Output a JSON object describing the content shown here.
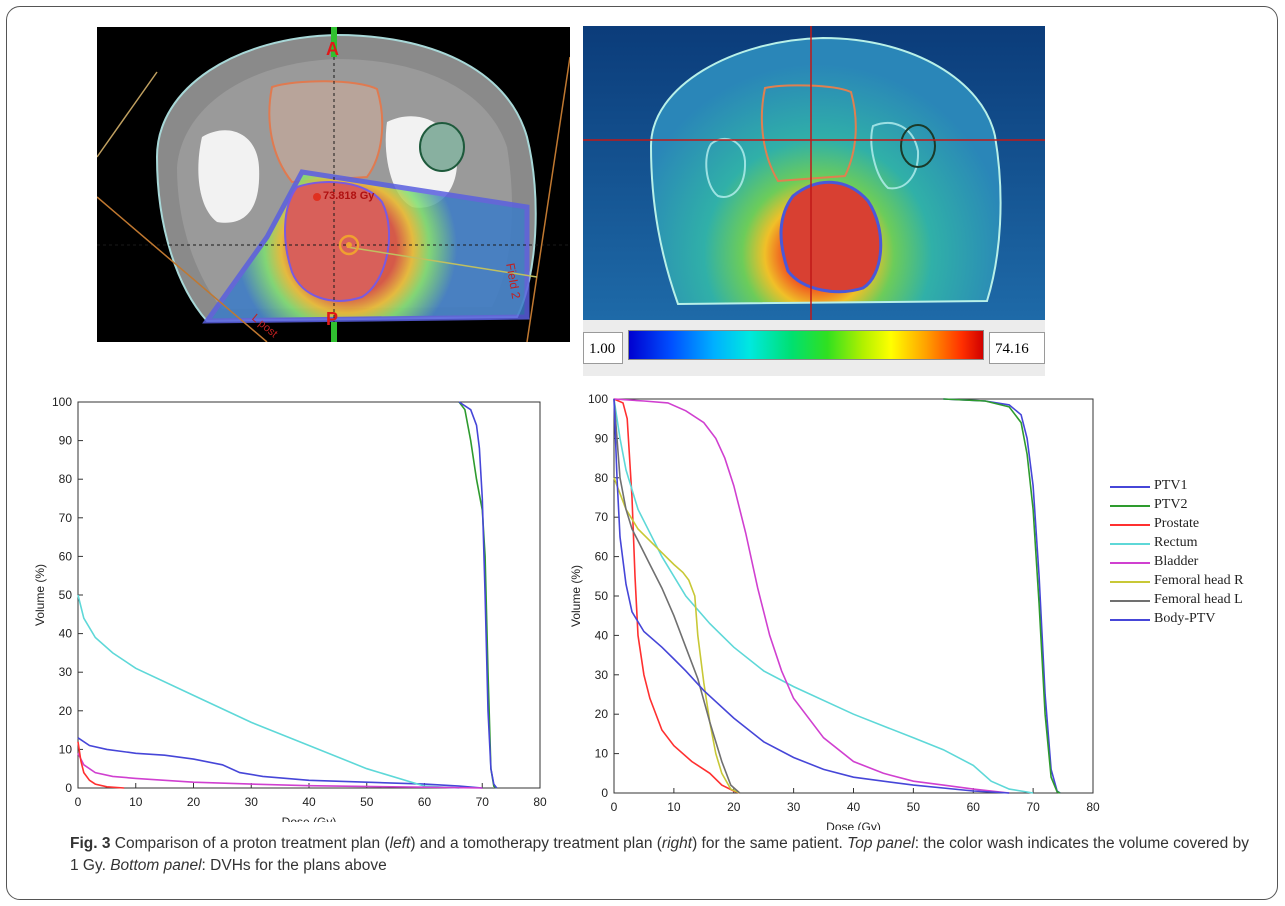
{
  "figure": {
    "caption": {
      "label": "Fig. 3",
      "part1": " Comparison of a proton treatment plan (",
      "left_word": "left",
      "part2": ") and a tomotherapy treatment plan (",
      "right_word": "right",
      "part3": ") for the same patient. ",
      "top_panel": "Top panel",
      "part4": ": the color wash indicates the volume covered by 1 Gy. ",
      "bottom_panel": "Bottom panel",
      "part5": ": DVHs for the plans above"
    },
    "ct_left": {
      "label_a": "A",
      "label_p": "P",
      "dose_label": "73.818 Gy",
      "field2_label": "Field 2",
      "lpost_label": "L post"
    },
    "colorbar": {
      "min": "1.00",
      "max": "74.16"
    },
    "legend": [
      {
        "name": "PTV1",
        "color": "#4646d8"
      },
      {
        "name": "PTV2",
        "color": "#2e9b2e"
      },
      {
        "name": "Prostate",
        "color": "#ff3030"
      },
      {
        "name": "Rectum",
        "color": "#5ed8d8"
      },
      {
        "name": "Bladder",
        "color": "#d040d0"
      },
      {
        "name": "Femoral head R",
        "color": "#c8c836"
      },
      {
        "name": "Femoral head L",
        "color": "#707070"
      },
      {
        "name": "Body-PTV",
        "color": "#4646d8"
      }
    ]
  },
  "chart_data": [
    {
      "type": "line",
      "xlabel": "Dose (Gy)",
      "ylabel": "Volume (%)",
      "xlim": [
        0,
        80
      ],
      "ylim": [
        0,
        100
      ],
      "xticks": [
        0,
        10,
        20,
        30,
        40,
        50,
        60,
        70,
        80
      ],
      "yticks": [
        0,
        10,
        20,
        30,
        40,
        50,
        60,
        70,
        80,
        90,
        100
      ],
      "grid": false,
      "series": [
        {
          "color": "#4646d8",
          "points": [
            [
              0,
              13
            ],
            [
              2,
              11
            ],
            [
              5,
              10
            ],
            [
              10,
              9
            ],
            [
              15,
              8.5
            ],
            [
              20,
              7.5
            ],
            [
              25,
              6
            ],
            [
              28,
              4
            ],
            [
              32,
              3
            ],
            [
              40,
              2
            ],
            [
              50,
              1.5
            ],
            [
              60,
              1
            ],
            [
              66,
              0.5
            ],
            [
              70,
              0
            ]
          ]
        },
        {
          "color": "#5ed8d8",
          "points": [
            [
              0,
              50
            ],
            [
              1,
              44
            ],
            [
              3,
              39
            ],
            [
              6,
              35
            ],
            [
              10,
              31
            ],
            [
              20,
              24
            ],
            [
              30,
              17
            ],
            [
              40,
              11
            ],
            [
              50,
              5
            ],
            [
              60,
              0.5
            ],
            [
              66,
              0
            ]
          ]
        },
        {
          "color": "#d040d0",
          "points": [
            [
              0,
              9
            ],
            [
              1,
              6
            ],
            [
              3,
              4
            ],
            [
              6,
              3
            ],
            [
              10,
              2.5
            ],
            [
              20,
              1.5
            ],
            [
              30,
              1
            ],
            [
              40,
              0.6
            ],
            [
              60,
              0.2
            ],
            [
              70,
              0
            ]
          ]
        },
        {
          "color": "#ff3030",
          "points": [
            [
              0,
              12
            ],
            [
              0.5,
              7
            ],
            [
              1,
              4
            ],
            [
              2,
              2
            ],
            [
              3,
              1
            ],
            [
              5,
              0.3
            ],
            [
              8,
              0
            ]
          ]
        },
        {
          "color": "#2e9b2e",
          "points": [
            [
              66,
              100
            ],
            [
              67,
              98
            ],
            [
              68,
              90
            ],
            [
              69,
              80
            ],
            [
              70,
              72
            ],
            [
              70.5,
              60
            ],
            [
              71,
              30
            ],
            [
              71.5,
              5
            ],
            [
              72,
              0.5
            ],
            [
              72.5,
              0
            ]
          ]
        },
        {
          "color": "#4646d8",
          "points": [
            [
              66,
              100
            ],
            [
              68,
              98
            ],
            [
              69,
              94
            ],
            [
              69.5,
              88
            ],
            [
              70,
              75
            ],
            [
              70.5,
              50
            ],
            [
              71,
              20
            ],
            [
              71.5,
              5
            ],
            [
              72,
              1
            ],
            [
              72.5,
              0
            ]
          ]
        }
      ]
    },
    {
      "type": "line",
      "xlabel": "Dose (Gy)",
      "ylabel": "Volume (%)",
      "xlim": [
        0,
        80
      ],
      "ylim": [
        0,
        100
      ],
      "xticks": [
        0,
        10,
        20,
        30,
        40,
        50,
        60,
        70,
        80
      ],
      "yticks": [
        0,
        10,
        20,
        30,
        40,
        50,
        60,
        70,
        80,
        90,
        100
      ],
      "grid": false,
      "series": [
        {
          "name": "PTV1",
          "color": "#4646d8",
          "points": [
            [
              55,
              100
            ],
            [
              62,
              99.5
            ],
            [
              66,
              98.5
            ],
            [
              68,
              96
            ],
            [
              69,
              90
            ],
            [
              70,
              78
            ],
            [
              71,
              55
            ],
            [
              72,
              25
            ],
            [
              73,
              6
            ],
            [
              74,
              0.5
            ],
            [
              74.5,
              0
            ]
          ]
        },
        {
          "name": "PTV2",
          "color": "#2e9b2e",
          "points": [
            [
              55,
              100
            ],
            [
              62,
              99.5
            ],
            [
              66,
              98
            ],
            [
              68,
              94
            ],
            [
              69,
              86
            ],
            [
              70,
              72
            ],
            [
              71,
              48
            ],
            [
              72,
              20
            ],
            [
              73,
              4
            ],
            [
              74,
              0.3
            ],
            [
              74.5,
              0
            ]
          ]
        },
        {
          "name": "Prostate",
          "color": "#ff3030",
          "points": [
            [
              0,
              100
            ],
            [
              1.5,
              99
            ],
            [
              2.2,
              95
            ],
            [
              3,
              75
            ],
            [
              3.5,
              55
            ],
            [
              4,
              40
            ],
            [
              5,
              30
            ],
            [
              6,
              24
            ],
            [
              8,
              16
            ],
            [
              10,
              12
            ],
            [
              13,
              8
            ],
            [
              16,
              5
            ],
            [
              18,
              2
            ],
            [
              20,
              0.5
            ],
            [
              21,
              0
            ]
          ]
        },
        {
          "name": "Rectum",
          "color": "#5ed8d8",
          "points": [
            [
              0,
              100
            ],
            [
              1,
              90
            ],
            [
              2,
              82
            ],
            [
              4,
              72
            ],
            [
              8,
              60
            ],
            [
              12,
              50
            ],
            [
              16,
              43
            ],
            [
              20,
              37
            ],
            [
              25,
              31
            ],
            [
              30,
              27
            ],
            [
              40,
              20
            ],
            [
              50,
              14
            ],
            [
              55,
              11
            ],
            [
              60,
              7
            ],
            [
              63,
              3
            ],
            [
              66,
              1
            ],
            [
              70,
              0
            ]
          ]
        },
        {
          "name": "Bladder",
          "color": "#d040d0",
          "points": [
            [
              0,
              100
            ],
            [
              5,
              99.5
            ],
            [
              9,
              99
            ],
            [
              12,
              97
            ],
            [
              15,
              94
            ],
            [
              17,
              90
            ],
            [
              18.5,
              85
            ],
            [
              20,
              78
            ],
            [
              22,
              66
            ],
            [
              24,
              52
            ],
            [
              26,
              40
            ],
            [
              28,
              31
            ],
            [
              30,
              24
            ],
            [
              35,
              14
            ],
            [
              40,
              8
            ],
            [
              45,
              5
            ],
            [
              50,
              3
            ],
            [
              55,
              2
            ],
            [
              60,
              1
            ],
            [
              66,
              0
            ]
          ]
        },
        {
          "name": "Femoral head R",
          "color": "#c8c836",
          "points": [
            [
              0,
              80
            ],
            [
              2,
              72
            ],
            [
              4,
              67
            ],
            [
              6,
              64
            ],
            [
              8,
              61
            ],
            [
              10,
              58
            ],
            [
              11.5,
              56
            ],
            [
              12.5,
              54
            ],
            [
              13.5,
              50
            ],
            [
              14,
              40
            ],
            [
              15,
              28
            ],
            [
              16,
              18
            ],
            [
              17,
              10
            ],
            [
              18,
              5
            ],
            [
              19.5,
              1
            ],
            [
              21,
              0
            ]
          ]
        },
        {
          "name": "Femoral head L",
          "color": "#707070",
          "points": [
            [
              0,
              100
            ],
            [
              0.5,
              90
            ],
            [
              1,
              80
            ],
            [
              2,
              72
            ],
            [
              3,
              67
            ],
            [
              4,
              64
            ],
            [
              6,
              58
            ],
            [
              8,
              52
            ],
            [
              10,
              45
            ],
            [
              12,
              37
            ],
            [
              14,
              29
            ],
            [
              16,
              18
            ],
            [
              18,
              8
            ],
            [
              19.5,
              2
            ],
            [
              21,
              0
            ]
          ]
        },
        {
          "name": "Body-PTV",
          "color": "#4646d8",
          "points": [
            [
              0,
              100
            ],
            [
              0.5,
              80
            ],
            [
              1,
              65
            ],
            [
              2,
              53
            ],
            [
              3,
              46
            ],
            [
              5,
              41
            ],
            [
              8,
              37
            ],
            [
              10,
              34
            ],
            [
              12,
              31
            ],
            [
              15,
              26
            ],
            [
              20,
              19
            ],
            [
              25,
              13
            ],
            [
              30,
              9
            ],
            [
              35,
              6
            ],
            [
              40,
              4
            ],
            [
              50,
              2
            ],
            [
              60,
              0.5
            ],
            [
              66,
              0
            ]
          ]
        }
      ]
    }
  ]
}
